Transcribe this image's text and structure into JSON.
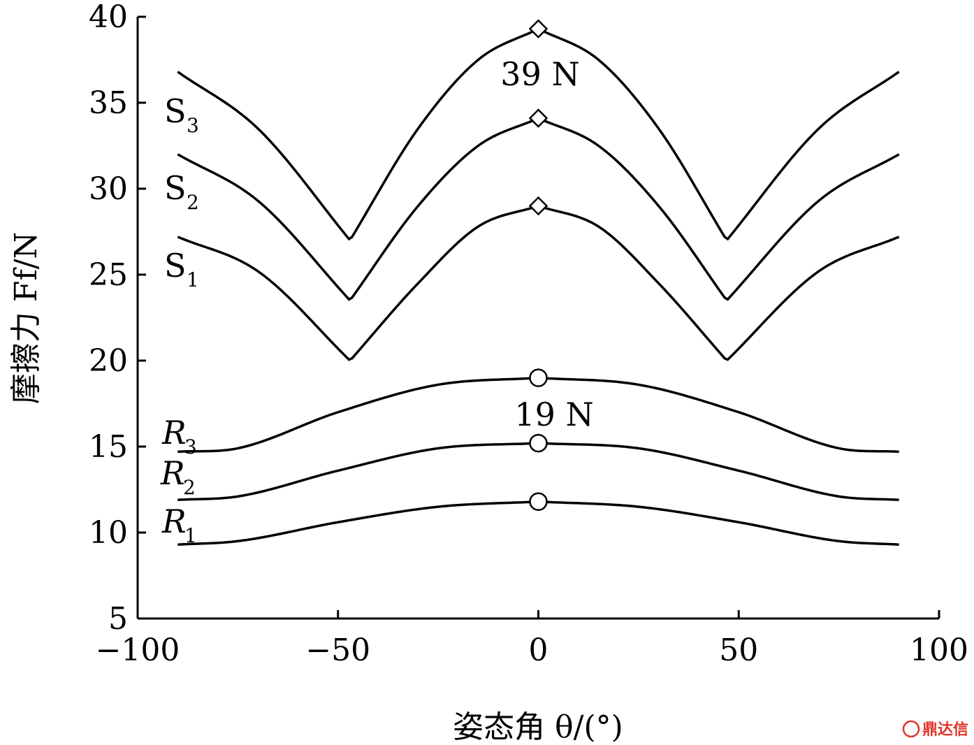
{
  "chart_data": {
    "type": "line",
    "xlabel": "姿态角 θ/(°)",
    "ylabel": "摩擦力 Ff/N",
    "xlim": [
      -100,
      100
    ],
    "ylim": [
      5,
      40
    ],
    "xticks": [
      "−100",
      "−50",
      "0",
      "50",
      "100"
    ],
    "yticks": [
      "5",
      "10",
      "15",
      "20",
      "25",
      "30",
      "35",
      "40"
    ],
    "grid": false,
    "annotations": [
      "39 N",
      "19 N"
    ],
    "series": [
      {
        "name": "S3",
        "label_main": "S",
        "label_sub": "3",
        "italic": false,
        "marker": "diamond",
        "x": [
          -90,
          -70,
          -47,
          -30,
          -15,
          0,
          15,
          30,
          47,
          70,
          90
        ],
        "y": [
          36.8,
          33.5,
          27,
          33.5,
          37.5,
          39.3,
          37.5,
          33.5,
          27,
          33.5,
          36.8
        ]
      },
      {
        "name": "S2",
        "label_main": "S",
        "label_sub": "2",
        "italic": false,
        "marker": "diamond",
        "x": [
          -90,
          -70,
          -47,
          -30,
          -15,
          0,
          15,
          30,
          47,
          70,
          90
        ],
        "y": [
          32.0,
          29.3,
          23.5,
          29,
          32.5,
          34.1,
          32.5,
          29,
          23.5,
          29.3,
          32.0
        ]
      },
      {
        "name": "S1",
        "label_main": "S",
        "label_sub": "1",
        "italic": false,
        "marker": "diamond",
        "x": [
          -90,
          -70,
          -47,
          -30,
          -15,
          0,
          15,
          30,
          47,
          70,
          90
        ],
        "y": [
          27.2,
          25.2,
          20,
          24.5,
          27.8,
          29.0,
          27.8,
          24.5,
          20,
          25.2,
          27.2
        ]
      },
      {
        "name": "R3",
        "label_main": "R",
        "label_sub": "3",
        "italic": true,
        "marker": "circle",
        "x": [
          -90,
          -75,
          -50,
          -25,
          0,
          25,
          50,
          75,
          90
        ],
        "y": [
          14.7,
          14.9,
          17,
          18.6,
          19.0,
          18.6,
          17,
          14.9,
          14.7
        ]
      },
      {
        "name": "R2",
        "label_main": "R",
        "label_sub": "2",
        "italic": true,
        "marker": "circle",
        "x": [
          -90,
          -75,
          -50,
          -25,
          0,
          25,
          50,
          75,
          90
        ],
        "y": [
          11.9,
          12.1,
          13.6,
          14.9,
          15.2,
          14.9,
          13.6,
          12.1,
          11.9
        ]
      },
      {
        "name": "R1",
        "label_main": "R",
        "label_sub": "1",
        "italic": true,
        "marker": "circle",
        "x": [
          -90,
          -75,
          -50,
          -25,
          0,
          25,
          50,
          75,
          90
        ],
        "y": [
          9.3,
          9.5,
          10.6,
          11.5,
          11.8,
          11.5,
          10.6,
          9.5,
          9.3
        ]
      }
    ]
  },
  "watermark": "鼎达信"
}
